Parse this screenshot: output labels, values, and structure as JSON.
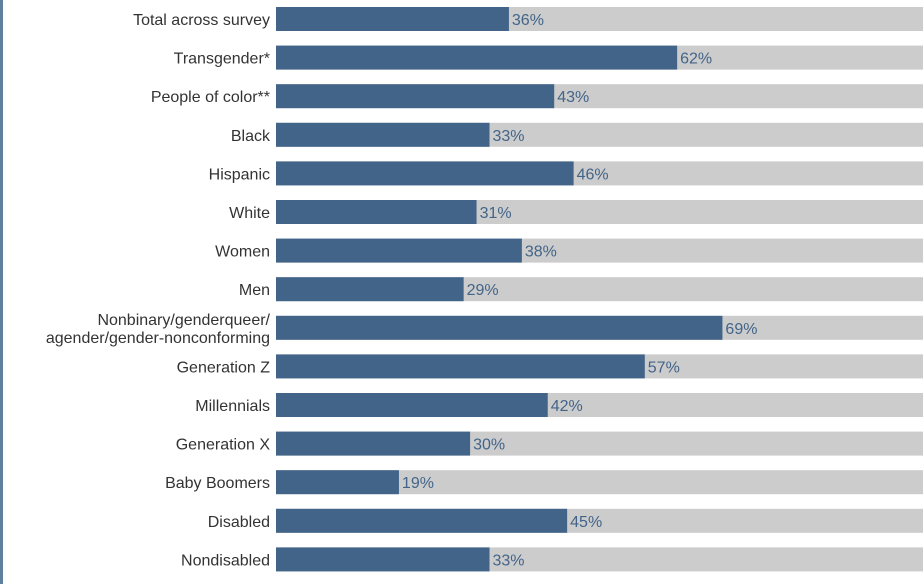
{
  "colors": {
    "bar": "#426489",
    "track": "#cccccc",
    "value_text": "#426489",
    "label_text": "#333333",
    "frame": "#5f7f9e"
  },
  "chart_data": {
    "type": "bar",
    "orientation": "horizontal",
    "xlim": [
      0,
      100
    ],
    "categories": [
      "Total across survey",
      "Transgender*",
      "People of color**",
      "Black",
      "Hispanic",
      "White",
      "Women",
      "Men",
      "Nonbinary/genderqueer/ agender/gender-nonconforming",
      "Generation Z",
      "Millennials",
      "Generation X",
      "Baby Boomers",
      "Disabled",
      "Nondisabled"
    ],
    "values": [
      36,
      62,
      43,
      33,
      46,
      31,
      38,
      29,
      69,
      57,
      42,
      30,
      19,
      45,
      33
    ],
    "value_labels": [
      "36%",
      "62%",
      "43%",
      "33%",
      "46%",
      "31%",
      "38%",
      "29%",
      "69%",
      "57%",
      "42%",
      "30%",
      "19%",
      "45%",
      "33%"
    ],
    "grid": false,
    "legend": "none"
  }
}
